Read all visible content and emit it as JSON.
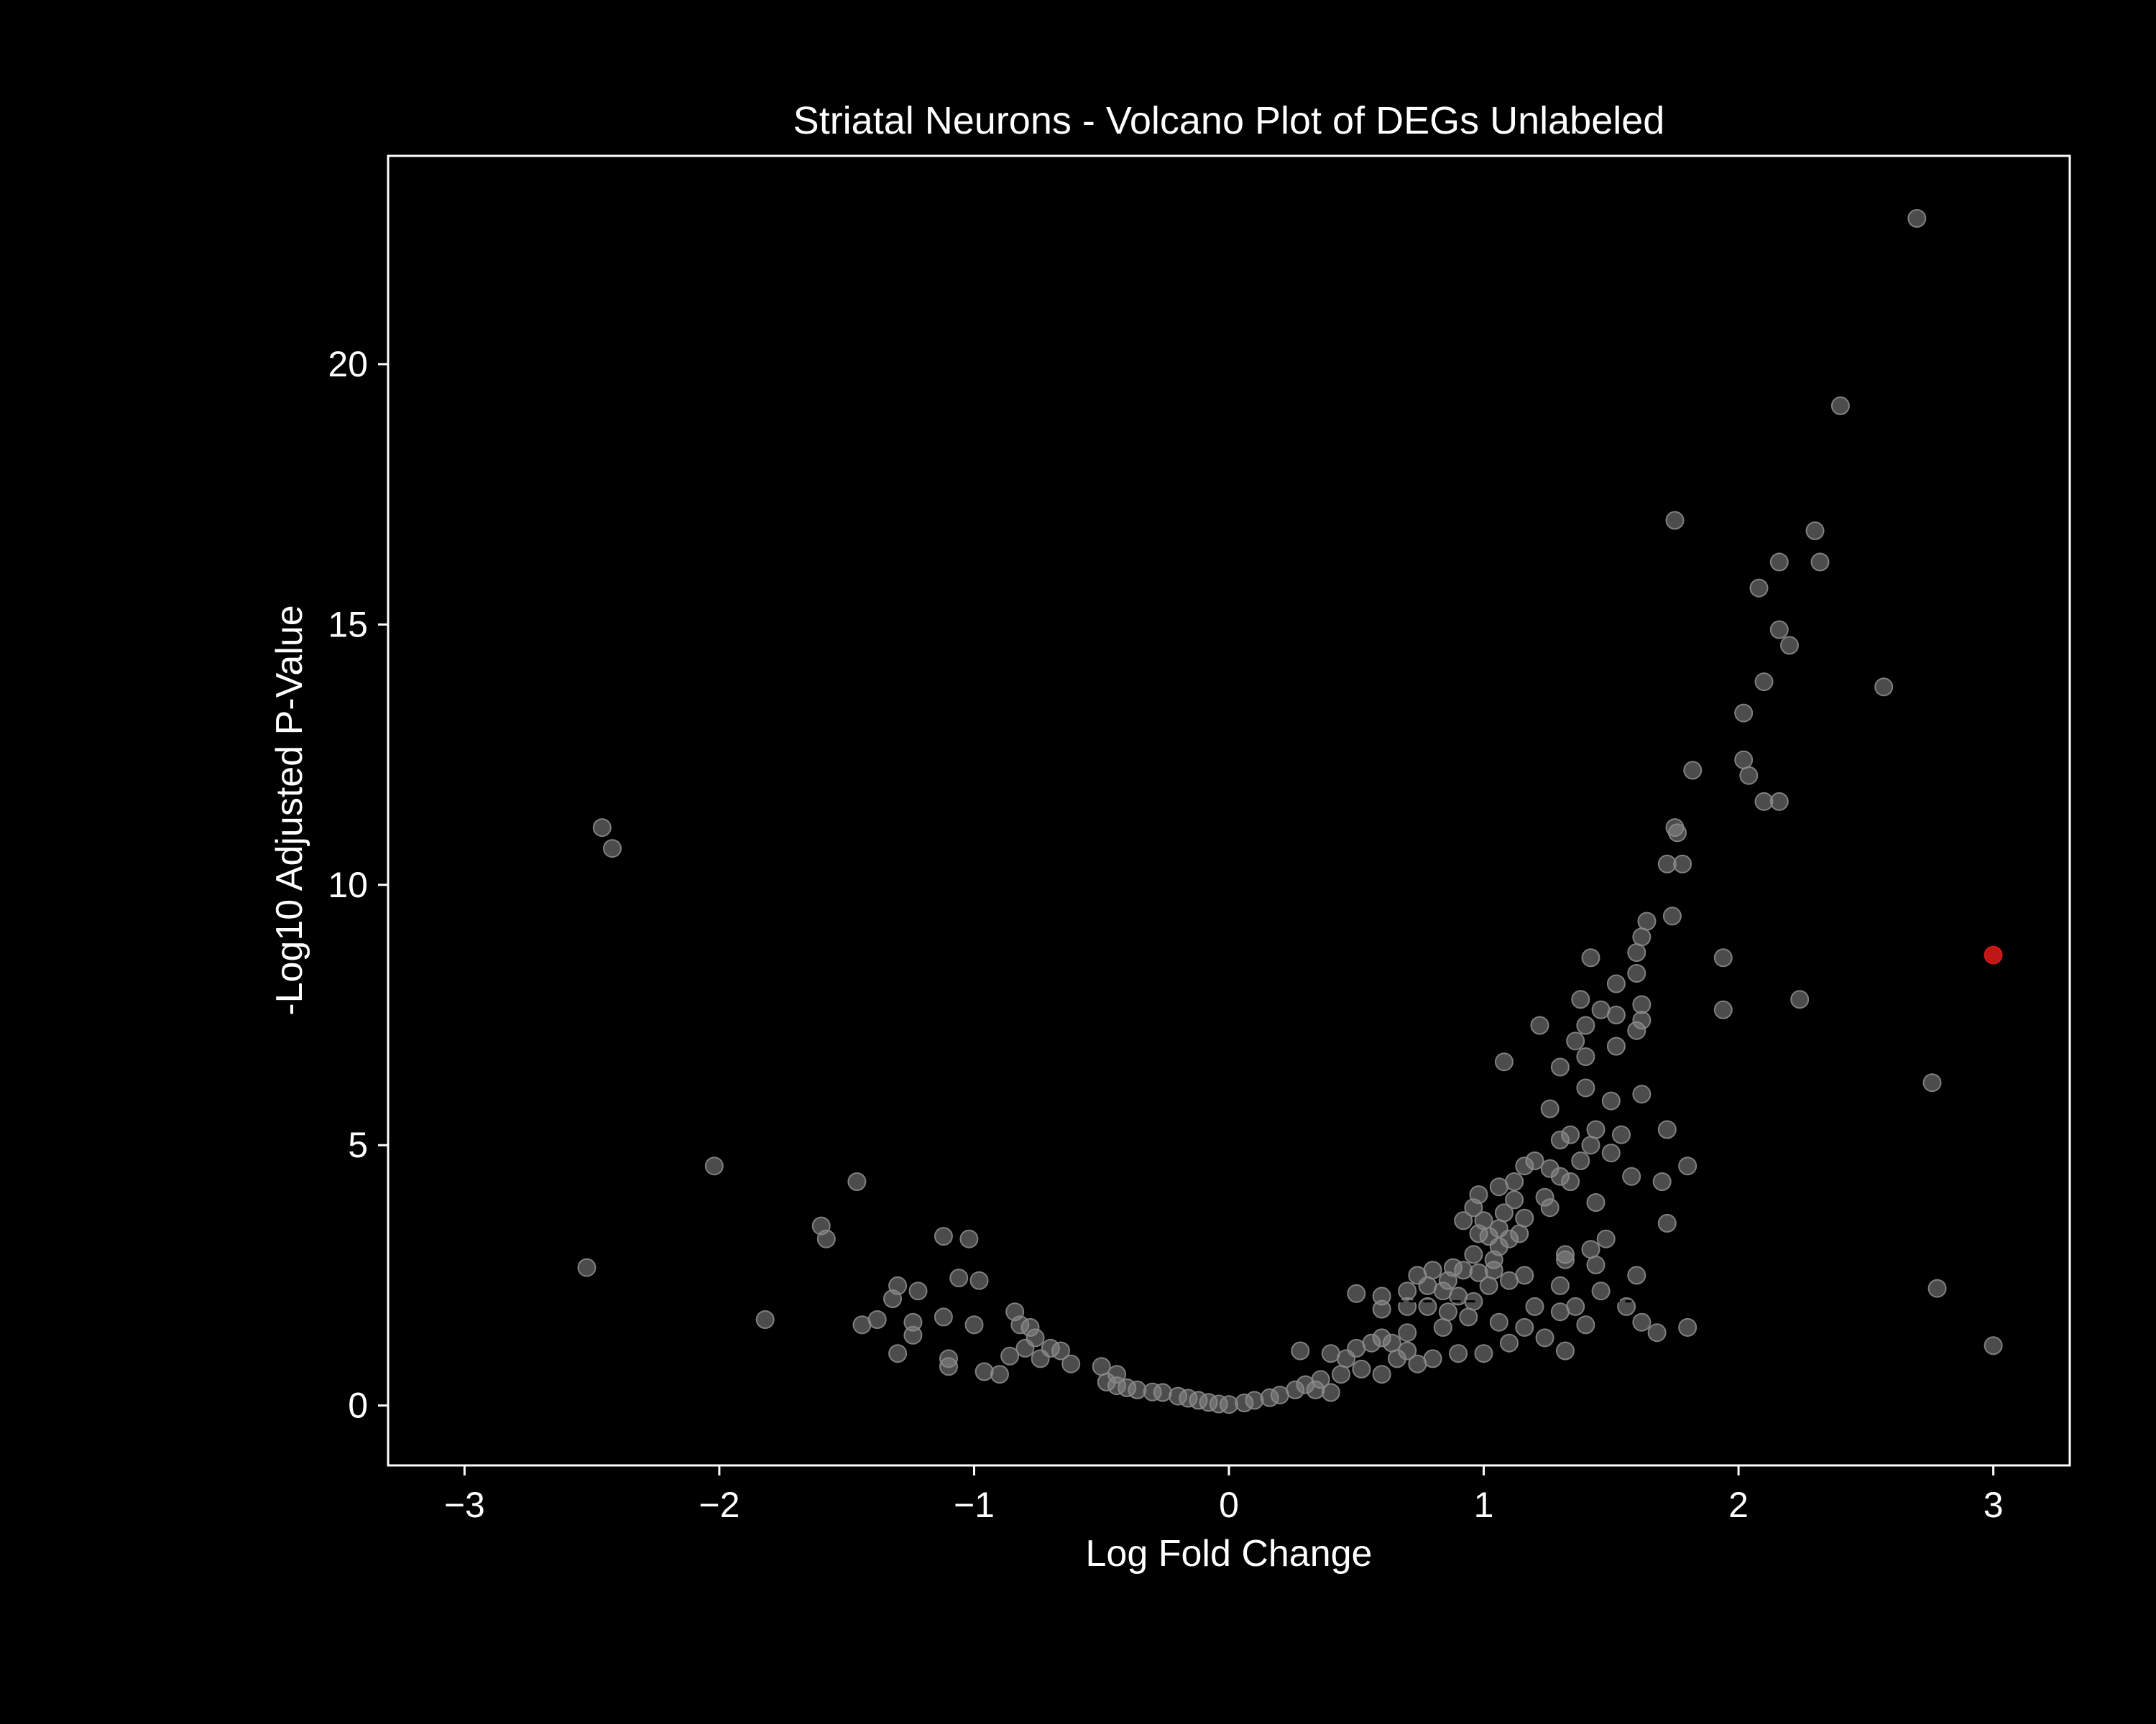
{
  "chart_data": {
    "type": "scatter",
    "title": "Striatal Neurons - Volcano Plot of DEGs Unlabeled",
    "xlabel": "Log Fold Change",
    "ylabel": "-Log10 Adjusted P-Value",
    "xlim": [
      -3.3,
      3.3
    ],
    "ylim": [
      -1.15,
      24.0
    ],
    "xticks": [
      -3,
      -2,
      -1,
      0,
      1,
      2,
      3
    ],
    "xtick_labels": [
      "−3",
      "−2",
      "−1",
      "0",
      "1",
      "2",
      "3"
    ],
    "yticks": [
      0,
      5,
      10,
      15,
      20
    ],
    "ytick_labels": [
      "0",
      "5",
      "10",
      "15",
      "20"
    ],
    "grid": false,
    "legend": "none",
    "colors": {
      "background": "#000000",
      "axes": "#ffffff",
      "point": "#8a8a8a",
      "highlight": "#e01a1a",
      "threshold_line": "#000000"
    },
    "threshold_lines": [
      {
        "x": [
          0.65,
          0.97
        ],
        "y": 2.0
      },
      {
        "x": [
          1.5,
          1.58
        ],
        "y": 2.0
      }
    ],
    "series": [
      {
        "category": "not-significant",
        "color": "#8a8a8a",
        "points": [
          [
            2.7,
            22.8
          ],
          [
            2.4,
            19.2
          ],
          [
            1.75,
            17.0
          ],
          [
            2.3,
            16.8
          ],
          [
            2.16,
            16.2
          ],
          [
            2.32,
            16.2
          ],
          [
            2.08,
            15.7
          ],
          [
            2.16,
            14.9
          ],
          [
            2.2,
            14.6
          ],
          [
            2.1,
            13.9
          ],
          [
            2.57,
            13.8
          ],
          [
            2.02,
            13.3
          ],
          [
            2.02,
            12.4
          ],
          [
            2.04,
            12.1
          ],
          [
            1.82,
            12.2
          ],
          [
            2.1,
            11.6
          ],
          [
            2.16,
            11.6
          ],
          [
            1.75,
            11.1
          ],
          [
            1.76,
            11.0
          ],
          [
            1.72,
            10.4
          ],
          [
            1.78,
            10.4
          ],
          [
            1.74,
            9.4
          ],
          [
            1.64,
            9.3
          ],
          [
            1.62,
            9.0
          ],
          [
            1.6,
            8.7
          ],
          [
            1.94,
            8.6
          ],
          [
            1.42,
            8.6
          ],
          [
            1.6,
            8.3
          ],
          [
            1.52,
            8.1
          ],
          [
            2.24,
            7.8
          ],
          [
            1.94,
            7.6
          ],
          [
            1.38,
            7.8
          ],
          [
            1.46,
            7.6
          ],
          [
            1.52,
            7.5
          ],
          [
            1.62,
            7.7
          ],
          [
            1.62,
            7.4
          ],
          [
            1.4,
            7.3
          ],
          [
            1.6,
            7.2
          ],
          [
            1.22,
            7.3
          ],
          [
            1.36,
            7.0
          ],
          [
            1.52,
            6.9
          ],
          [
            1.4,
            6.7
          ],
          [
            1.3,
            6.5
          ],
          [
            1.08,
            6.6
          ],
          [
            2.76,
            6.2
          ],
          [
            1.4,
            6.1
          ],
          [
            1.62,
            5.98
          ],
          [
            1.5,
            5.85
          ],
          [
            1.26,
            5.7
          ],
          [
            1.72,
            5.3
          ],
          [
            1.44,
            5.3
          ],
          [
            1.34,
            5.2
          ],
          [
            1.54,
            5.2
          ],
          [
            1.3,
            5.1
          ],
          [
            1.42,
            5.0
          ],
          [
            1.5,
            4.85
          ],
          [
            1.2,
            4.7
          ],
          [
            1.38,
            4.7
          ],
          [
            1.26,
            4.55
          ],
          [
            1.16,
            4.6
          ],
          [
            1.8,
            4.6
          ],
          [
            1.3,
            4.4
          ],
          [
            1.58,
            4.4
          ],
          [
            1.7,
            4.3
          ],
          [
            1.34,
            4.3
          ],
          [
            1.12,
            4.3
          ],
          [
            1.06,
            4.2
          ],
          [
            0.98,
            4.05
          ],
          [
            1.24,
            4.0
          ],
          [
            1.12,
            3.95
          ],
          [
            1.44,
            3.9
          ],
          [
            1.26,
            3.8
          ],
          [
            0.96,
            3.8
          ],
          [
            1.08,
            3.7
          ],
          [
            1.16,
            3.6
          ],
          [
            0.92,
            3.55
          ],
          [
            1.0,
            3.55
          ],
          [
            1.06,
            3.4
          ],
          [
            1.14,
            3.3
          ],
          [
            1.72,
            3.5
          ],
          [
            0.98,
            3.3
          ],
          [
            1.02,
            3.25
          ],
          [
            1.1,
            3.2
          ],
          [
            1.48,
            3.2
          ],
          [
            1.06,
            3.05
          ],
          [
            1.42,
            3.0
          ],
          [
            1.32,
            2.9
          ],
          [
            0.96,
            2.9
          ],
          [
            1.04,
            2.8
          ],
          [
            1.32,
            2.8
          ],
          [
            1.44,
            2.7
          ],
          [
            1.04,
            2.6
          ],
          [
            1.6,
            2.5
          ],
          [
            0.92,
            2.6
          ],
          [
            0.98,
            2.55
          ],
          [
            1.1,
            2.4
          ],
          [
            1.16,
            2.5
          ],
          [
            1.3,
            2.3
          ],
          [
            1.02,
            2.3
          ],
          [
            1.46,
            2.2
          ],
          [
            1.36,
            1.9
          ],
          [
            0.88,
            2.65
          ],
          [
            0.8,
            2.6
          ],
          [
            0.74,
            2.5
          ],
          [
            0.86,
            2.4
          ],
          [
            0.78,
            2.3
          ],
          [
            0.7,
            2.2
          ],
          [
            0.84,
            2.2
          ],
          [
            0.6,
            2.1
          ],
          [
            0.5,
            2.15
          ],
          [
            0.9,
            2.1
          ],
          [
            0.96,
            2.0
          ],
          [
            0.7,
            1.9
          ],
          [
            0.78,
            1.9
          ],
          [
            0.6,
            1.85
          ],
          [
            1.2,
            1.9
          ],
          [
            1.3,
            1.8
          ],
          [
            0.86,
            1.8
          ],
          [
            1.56,
            1.9
          ],
          [
            1.4,
            1.55
          ],
          [
            1.62,
            1.6
          ],
          [
            1.8,
            1.5
          ],
          [
            1.68,
            1.4
          ],
          [
            0.94,
            1.7
          ],
          [
            1.06,
            1.6
          ],
          [
            1.16,
            1.5
          ],
          [
            1.24,
            1.3
          ],
          [
            1.1,
            1.2
          ],
          [
            1.32,
            1.05
          ],
          [
            1.0,
            1.0
          ],
          [
            0.9,
            1.0
          ],
          [
            0.8,
            0.9
          ],
          [
            0.74,
            0.8
          ],
          [
            0.66,
            0.9
          ],
          [
            0.6,
            1.3
          ],
          [
            0.64,
            1.2
          ],
          [
            0.56,
            1.2
          ],
          [
            0.7,
            1.4
          ],
          [
            0.84,
            1.5
          ],
          [
            0.5,
            1.1
          ],
          [
            0.4,
            1.0
          ],
          [
            0.46,
            0.9
          ],
          [
            0.7,
            1.05
          ],
          [
            0.6,
            0.6
          ],
          [
            0.52,
            0.7
          ],
          [
            0.44,
            0.6
          ],
          [
            0.36,
            0.5
          ],
          [
            0.3,
            0.4
          ],
          [
            0.28,
            1.05
          ],
          [
            0.34,
            0.3
          ],
          [
            0.26,
            0.3
          ],
          [
            0.4,
            0.25
          ],
          [
            0.2,
            0.2
          ],
          [
            0.16,
            0.15
          ],
          [
            0.1,
            0.1
          ],
          [
            0.06,
            0.05
          ],
          [
            0.0,
            0.02
          ],
          [
            -0.04,
            0.03
          ],
          [
            -0.08,
            0.06
          ],
          [
            -0.12,
            0.1
          ],
          [
            -0.16,
            0.14
          ],
          [
            -0.2,
            0.18
          ],
          [
            -0.26,
            0.25
          ],
          [
            -0.3,
            0.26
          ],
          [
            -0.36,
            0.3
          ],
          [
            -0.4,
            0.34
          ],
          [
            -0.44,
            0.38
          ],
          [
            -0.48,
            0.45
          ],
          [
            -0.5,
            0.75
          ],
          [
            -0.44,
            0.6
          ],
          [
            -0.62,
            0.8
          ],
          [
            -0.7,
            1.1
          ],
          [
            -0.66,
            1.05
          ],
          [
            -0.74,
            0.9
          ],
          [
            -0.8,
            1.1
          ],
          [
            -0.86,
            0.95
          ],
          [
            -0.76,
            1.3
          ],
          [
            -0.84,
            1.8
          ],
          [
            -0.82,
            1.55
          ],
          [
            -0.78,
            1.5
          ],
          [
            -0.9,
            0.6
          ],
          [
            -0.96,
            0.65
          ],
          [
            -1.0,
            1.55
          ],
          [
            -1.1,
            0.9
          ],
          [
            -1.1,
            0.75
          ],
          [
            -1.06,
            2.45
          ],
          [
            -0.98,
            2.4
          ],
          [
            -1.12,
            1.7
          ],
          [
            -1.12,
            3.25
          ],
          [
            -1.02,
            3.2
          ],
          [
            -1.22,
            2.2
          ],
          [
            -1.24,
            1.6
          ],
          [
            -1.3,
            2.3
          ],
          [
            -1.32,
            2.05
          ],
          [
            -1.24,
            1.35
          ],
          [
            -1.3,
            1.0
          ],
          [
            -1.38,
            1.65
          ],
          [
            -1.44,
            1.55
          ],
          [
            -1.6,
            3.45
          ],
          [
            -1.58,
            3.2
          ],
          [
            -1.46,
            4.3
          ],
          [
            -1.82,
            1.65
          ],
          [
            -2.02,
            4.6
          ],
          [
            -2.52,
            2.65
          ],
          [
            -2.46,
            11.1
          ],
          [
            -2.42,
            10.7
          ],
          [
            2.78,
            2.25
          ],
          [
            3.0,
            1.15
          ]
        ]
      },
      {
        "category": "significant",
        "color": "#e01a1a",
        "points": [
          [
            3.0,
            8.65
          ]
        ]
      }
    ]
  }
}
